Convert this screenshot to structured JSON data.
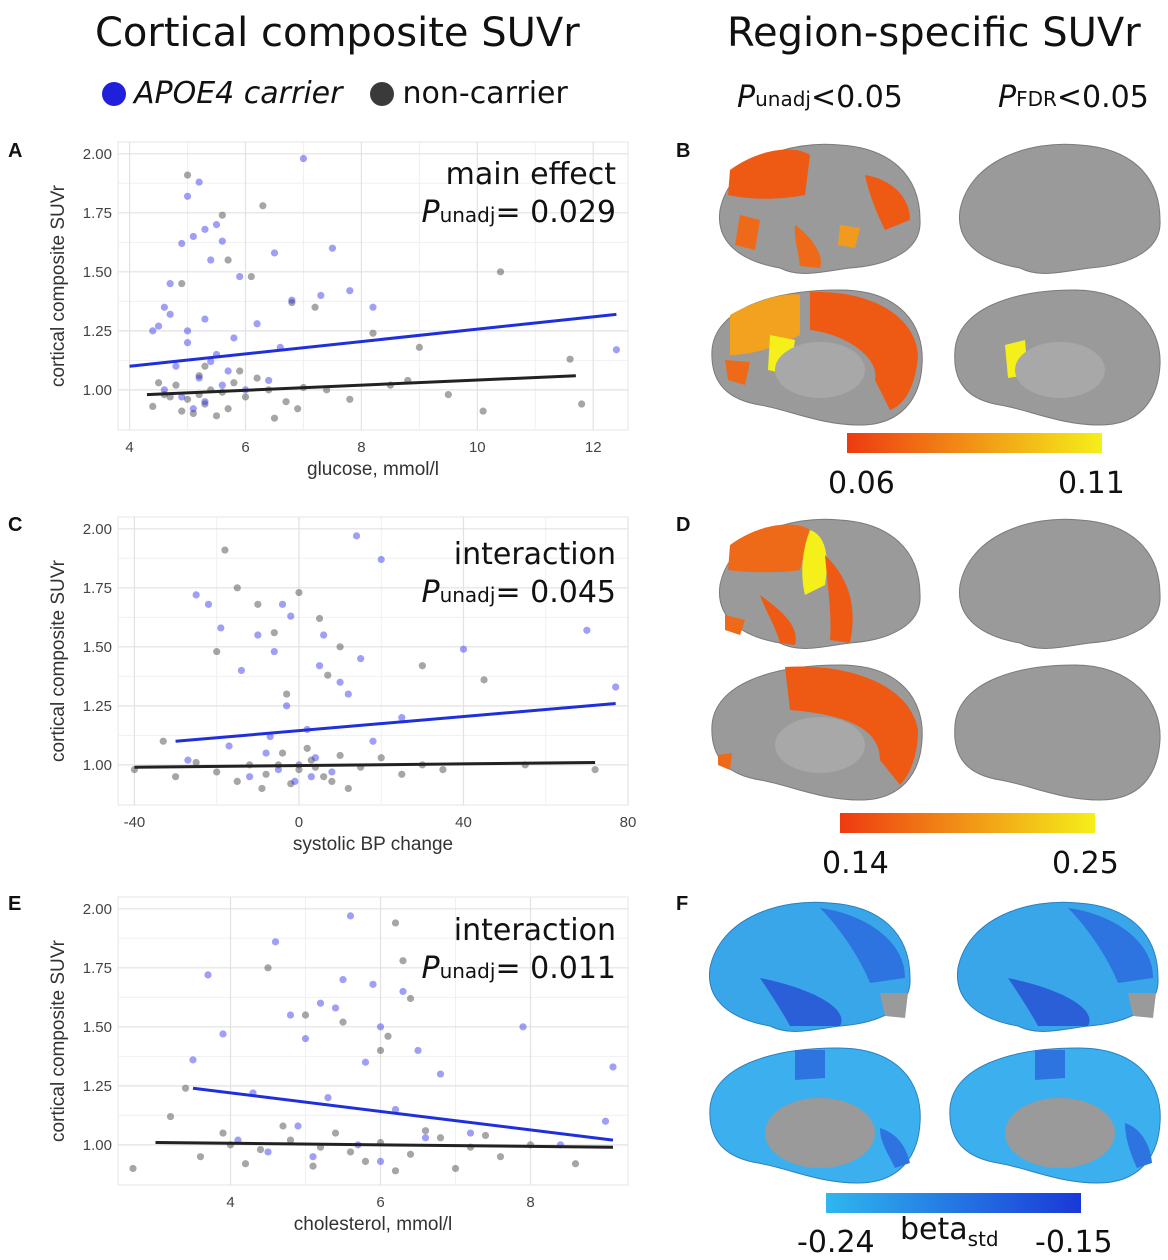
{
  "headers": {
    "left": "Cortical composite SUVr",
    "right": "Region-specific SUVr"
  },
  "legend": {
    "carrier": {
      "label": "APOE4 carrier",
      "color": "#1f1fdc"
    },
    "noncarrier": {
      "label": "non-carrier",
      "color": "#3a3a3a"
    }
  },
  "col_headers": {
    "unadj": {
      "p": "P",
      "sub": "unadj",
      "rest": "<0.05"
    },
    "fdr": {
      "p": "P",
      "sub": "FDR",
      "rest": "<0.05"
    }
  },
  "panels": {
    "A": {
      "letter": "A",
      "ann1": "main effect",
      "p": "P",
      "sub": "unadj",
      "val": "= 0.029"
    },
    "B": {
      "letter": "B",
      "scale_min": "0.06",
      "scale_max": "0.11"
    },
    "C": {
      "letter": "C",
      "ann1": "interaction",
      "p": "P",
      "sub": "unadj",
      "val": "= 0.045"
    },
    "D": {
      "letter": "D",
      "scale_min": "0.14",
      "scale_max": "0.25"
    },
    "E": {
      "letter": "E",
      "ann1": "interaction",
      "p": "P",
      "sub": "unadj",
      "val": "= 0.011"
    },
    "F": {
      "letter": "F",
      "scale_min": "-0.24",
      "scale_max": "-0.15",
      "beta": "beta",
      "beta_sub": "std"
    }
  },
  "colors": {
    "warm_start": "#ee3a12",
    "warm_end": "#f5ef1a",
    "cool_start": "#2fb7ee",
    "cool_end": "#1a38d8",
    "brain_gray": "#9a9a9a"
  },
  "chart_data": [
    {
      "type": "scatter",
      "panel": "A",
      "xlabel": "glucose, mmol/l",
      "ylabel": "cortical composite SUVr",
      "xlim": [
        3.8,
        12.6
      ],
      "ylim": [
        0.83,
        2.05
      ],
      "xticks": [
        4,
        6,
        8,
        10,
        12
      ],
      "yticks": [
        1.0,
        1.25,
        1.5,
        1.75,
        2.0
      ],
      "grid": true,
      "fit_lines": [
        {
          "name": "APOE4 carrier",
          "x": [
            4.0,
            12.4
          ],
          "y": [
            1.1,
            1.32
          ]
        },
        {
          "name": "non-carrier",
          "x": [
            4.3,
            11.7
          ],
          "y": [
            0.98,
            1.06
          ]
        }
      ],
      "series": [
        {
          "name": "APOE4 carrier",
          "points": [
            [
              5.2,
              1.88
            ],
            [
              7.0,
              1.98
            ],
            [
              5.0,
              1.82
            ],
            [
              5.3,
              1.68
            ],
            [
              5.1,
              1.65
            ],
            [
              4.9,
              1.62
            ],
            [
              5.6,
              1.63
            ],
            [
              7.5,
              1.6
            ],
            [
              5.4,
              1.55
            ],
            [
              6.5,
              1.58
            ],
            [
              4.6,
              1.35
            ],
            [
              4.7,
              1.32
            ],
            [
              5.3,
              1.3
            ],
            [
              6.8,
              1.38
            ],
            [
              7.3,
              1.4
            ],
            [
              8.2,
              1.35
            ],
            [
              4.5,
              1.27
            ],
            [
              5.8,
              1.22
            ],
            [
              12.4,
              1.17
            ],
            [
              7.8,
              1.42
            ],
            [
              6.2,
              1.28
            ],
            [
              5.0,
              1.2
            ],
            [
              5.5,
              1.15
            ],
            [
              4.8,
              1.1
            ],
            [
              5.2,
              1.05
            ],
            [
              5.6,
              1.02
            ],
            [
              6.0,
              1.0
            ],
            [
              4.9,
              0.97
            ],
            [
              5.3,
              0.95
            ],
            [
              5.7,
              1.08
            ],
            [
              4.6,
              1.0
            ],
            [
              5.1,
              0.92
            ],
            [
              6.4,
              1.04
            ],
            [
              5.4,
              1.12
            ],
            [
              4.7,
              1.45
            ],
            [
              5.9,
              1.48
            ],
            [
              5.5,
              1.7
            ],
            [
              4.4,
              1.25
            ],
            [
              6.6,
              1.18
            ],
            [
              5.0,
              1.25
            ]
          ]
        },
        {
          "name": "non-carrier",
          "points": [
            [
              5.0,
              1.91
            ],
            [
              5.6,
              1.74
            ],
            [
              6.3,
              1.78
            ],
            [
              4.9,
              1.45
            ],
            [
              5.7,
              1.55
            ],
            [
              6.1,
              1.48
            ],
            [
              10.4,
              1.5
            ],
            [
              6.8,
              1.37
            ],
            [
              7.2,
              1.35
            ],
            [
              8.2,
              1.24
            ],
            [
              9.0,
              1.18
            ],
            [
              11.6,
              1.13
            ],
            [
              11.8,
              0.94
            ],
            [
              10.1,
              0.91
            ],
            [
              5.2,
              0.98
            ],
            [
              5.4,
              1.0
            ],
            [
              5.6,
              0.99
            ],
            [
              4.8,
              1.02
            ],
            [
              5.0,
              0.96
            ],
            [
              5.3,
              0.94
            ],
            [
              5.8,
              1.03
            ],
            [
              6.0,
              0.97
            ],
            [
              6.4,
              1.0
            ],
            [
              4.6,
              0.98
            ],
            [
              4.4,
              0.93
            ],
            [
              5.1,
              0.9
            ],
            [
              5.5,
              0.89
            ],
            [
              6.2,
              1.05
            ],
            [
              6.7,
              0.95
            ],
            [
              7.0,
              1.01
            ],
            [
              7.8,
              0.96
            ],
            [
              8.5,
              1.02
            ],
            [
              9.5,
              0.98
            ],
            [
              4.5,
              1.03
            ],
            [
              5.7,
              0.92
            ],
            [
              6.5,
              0.88
            ],
            [
              5.9,
              1.08
            ],
            [
              5.2,
              1.06
            ],
            [
              4.7,
              0.97
            ],
            [
              7.4,
              1.0
            ],
            [
              8.8,
              1.04
            ],
            [
              6.9,
              0.92
            ],
            [
              5.3,
              1.1
            ],
            [
              4.9,
              0.91
            ]
          ]
        }
      ]
    },
    {
      "type": "scatter",
      "panel": "C",
      "xlabel": "systolic BP change",
      "ylabel": "cortical composite SUVr",
      "xlim": [
        -44,
        80
      ],
      "ylim": [
        0.83,
        2.05
      ],
      "xticks": [
        -40,
        0,
        40,
        80
      ],
      "yticks": [
        1.0,
        1.25,
        1.5,
        1.75,
        2.0
      ],
      "grid": true,
      "fit_lines": [
        {
          "name": "APOE4 carrier",
          "x": [
            -30,
            77
          ],
          "y": [
            1.1,
            1.26
          ]
        },
        {
          "name": "non-carrier",
          "x": [
            -40,
            72
          ],
          "y": [
            0.99,
            1.01
          ]
        }
      ],
      "series": [
        {
          "name": "APOE4 carrier",
          "points": [
            [
              14,
              1.97
            ],
            [
              20,
              1.87
            ],
            [
              -25,
              1.72
            ],
            [
              -22,
              1.68
            ],
            [
              -4,
              1.68
            ],
            [
              -2,
              1.63
            ],
            [
              -19,
              1.58
            ],
            [
              -10,
              1.55
            ],
            [
              6,
              1.55
            ],
            [
              -6,
              1.48
            ],
            [
              15,
              1.45
            ],
            [
              40,
              1.49
            ],
            [
              70,
              1.57
            ],
            [
              77,
              1.33
            ],
            [
              5,
              1.42
            ],
            [
              10,
              1.35
            ],
            [
              -14,
              1.4
            ],
            [
              -3,
              1.25
            ],
            [
              12,
              1.3
            ],
            [
              2,
              1.15
            ],
            [
              -8,
              1.05
            ],
            [
              -5,
              0.98
            ],
            [
              0,
              1.0
            ],
            [
              4,
              1.03
            ],
            [
              -12,
              0.95
            ],
            [
              8,
              0.97
            ],
            [
              -1,
              0.93
            ],
            [
              18,
              1.1
            ],
            [
              25,
              1.2
            ],
            [
              -27,
              1.02
            ],
            [
              -17,
              1.08
            ],
            [
              3,
              0.95
            ],
            [
              -7,
              1.12
            ]
          ]
        },
        {
          "name": "non-carrier",
          "points": [
            [
              -18,
              1.91
            ],
            [
              -15,
              1.75
            ],
            [
              0,
              1.73
            ],
            [
              -10,
              1.68
            ],
            [
              5,
              1.62
            ],
            [
              -6,
              1.56
            ],
            [
              10,
              1.5
            ],
            [
              -20,
              1.48
            ],
            [
              30,
              1.42
            ],
            [
              45,
              1.36
            ],
            [
              -3,
              1.3
            ],
            [
              7,
              1.38
            ],
            [
              -33,
              1.1
            ],
            [
              -40,
              0.98
            ],
            [
              72,
              0.98
            ],
            [
              55,
              1.0
            ],
            [
              -5,
              1.0
            ],
            [
              0,
              0.98
            ],
            [
              3,
              1.02
            ],
            [
              -8,
              0.96
            ],
            [
              6,
              0.95
            ],
            [
              -2,
              0.92
            ],
            [
              10,
              1.04
            ],
            [
              -12,
              1.0
            ],
            [
              15,
              0.99
            ],
            [
              -20,
              0.97
            ],
            [
              20,
              1.03
            ],
            [
              25,
              0.96
            ],
            [
              -25,
              1.01
            ],
            [
              30,
              1.0
            ],
            [
              35,
              0.98
            ],
            [
              -15,
              0.93
            ],
            [
              -30,
              0.95
            ],
            [
              12,
              0.9
            ],
            [
              2,
              1.07
            ],
            [
              -4,
              1.05
            ],
            [
              8,
              0.93
            ],
            [
              -9,
              0.9
            ],
            [
              4,
              0.99
            ]
          ]
        }
      ]
    },
    {
      "type": "scatter",
      "panel": "E",
      "xlabel": "cholesterol, mmol/l",
      "ylabel": "cortical composite SUVr",
      "xlim": [
        2.5,
        9.3
      ],
      "ylim": [
        0.83,
        2.05
      ],
      "xticks": [
        4,
        6,
        8
      ],
      "yticks": [
        1.0,
        1.25,
        1.5,
        1.75,
        2.0
      ],
      "grid": true,
      "fit_lines": [
        {
          "name": "APOE4 carrier",
          "x": [
            3.5,
            9.1
          ],
          "y": [
            1.24,
            1.02
          ]
        },
        {
          "name": "non-carrier",
          "x": [
            3.0,
            9.1
          ],
          "y": [
            1.01,
            0.99
          ]
        }
      ],
      "series": [
        {
          "name": "APOE4 carrier",
          "points": [
            [
              5.6,
              1.97
            ],
            [
              4.6,
              1.86
            ],
            [
              3.7,
              1.72
            ],
            [
              5.5,
              1.7
            ],
            [
              5.9,
              1.68
            ],
            [
              5.2,
              1.6
            ],
            [
              6.3,
              1.65
            ],
            [
              5.4,
              1.58
            ],
            [
              4.8,
              1.55
            ],
            [
              6.0,
              1.5
            ],
            [
              7.9,
              1.5
            ],
            [
              5.0,
              1.45
            ],
            [
              6.5,
              1.4
            ],
            [
              3.9,
              1.47
            ],
            [
              5.8,
              1.35
            ],
            [
              6.8,
              1.3
            ],
            [
              9.1,
              1.33
            ],
            [
              3.5,
              1.36
            ],
            [
              4.3,
              1.22
            ],
            [
              5.3,
              1.2
            ],
            [
              6.2,
              1.15
            ],
            [
              4.9,
              1.08
            ],
            [
              5.7,
              1.0
            ],
            [
              6.6,
              1.03
            ],
            [
              4.5,
              0.97
            ],
            [
              5.1,
              0.95
            ],
            [
              7.2,
              1.05
            ],
            [
              8.4,
              1.0
            ],
            [
              9.0,
              1.1
            ],
            [
              6.0,
              0.93
            ],
            [
              4.1,
              1.02
            ]
          ]
        },
        {
          "name": "non-carrier",
          "points": [
            [
              6.2,
              1.94
            ],
            [
              6.3,
              1.78
            ],
            [
              4.5,
              1.75
            ],
            [
              6.4,
              1.62
            ],
            [
              5.0,
              1.55
            ],
            [
              5.5,
              1.52
            ],
            [
              6.1,
              1.46
            ],
            [
              6.0,
              1.4
            ],
            [
              3.4,
              1.24
            ],
            [
              3.2,
              1.12
            ],
            [
              2.7,
              0.9
            ],
            [
              4.0,
              1.0
            ],
            [
              4.4,
              0.98
            ],
            [
              4.8,
              1.02
            ],
            [
              5.2,
              0.99
            ],
            [
              5.6,
              0.97
            ],
            [
              6.0,
              1.01
            ],
            [
              6.4,
              0.96
            ],
            [
              6.8,
              1.03
            ],
            [
              7.2,
              0.99
            ],
            [
              7.6,
              0.95
            ],
            [
              8.0,
              1.0
            ],
            [
              8.6,
              0.92
            ],
            [
              3.6,
              0.95
            ],
            [
              4.2,
              0.92
            ],
            [
              5.4,
              1.05
            ],
            [
              5.8,
              0.93
            ],
            [
              6.6,
              1.06
            ],
            [
              7.0,
              0.9
            ],
            [
              4.7,
              1.08
            ],
            [
              5.1,
              0.91
            ],
            [
              3.9,
              1.05
            ],
            [
              7.4,
              1.04
            ],
            [
              6.2,
              0.89
            ]
          ]
        }
      ]
    }
  ]
}
